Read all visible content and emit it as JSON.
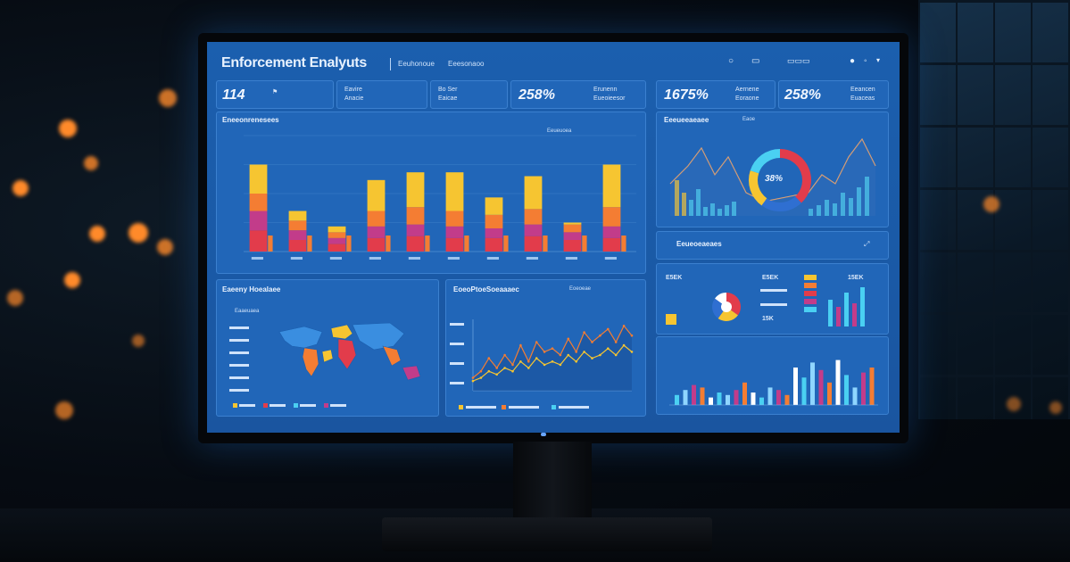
{
  "app": {
    "title": "Enforcement Enalyuts",
    "header_text_1": "Eeuhonoue",
    "header_text_2": "Eeesonaoo"
  },
  "kpis": [
    {
      "value": "114",
      "label_a": "",
      "label_b": ""
    },
    {
      "value": "",
      "label_a": "Eavire",
      "label_b": "Anacie"
    },
    {
      "value": "",
      "label_a": "Bo Ser",
      "label_b": "Eaicae"
    },
    {
      "value": "258%",
      "label_a": "Erunenn",
      "label_b": "Eueoieesor"
    },
    {
      "value": "1675%",
      "label_a": "Aernene",
      "label_b": "Eoraone"
    },
    {
      "value": "258%",
      "label_a": "Eeancen",
      "label_b": "Euaceas"
    }
  ],
  "panels": {
    "bar_main_title": "Eneeonrenesees",
    "bar_main_legend": "Eeueuoea",
    "map_title": "Eaeeny Hoealaee",
    "map_subtitle": "Eaaeuaea",
    "line_title": "EoeoPtoeSoeaaaec",
    "line_legend": "Eoeoeae",
    "combo_title": "Eeeueeaeaee",
    "combo_legend": "Eaoe",
    "breakdown_title": "Eeueoeaeaes",
    "donut_center": "38%",
    "mini_kpi_1": "E5EK",
    "mini_kpi_2": "15K",
    "mini_kpi_3": "15EK"
  },
  "colors": {
    "screen_bg": "#1b5fae",
    "panel_bg": "#2166b8",
    "yellow": "#f6c531",
    "orange": "#f47d33",
    "red": "#e23c4b",
    "magenta": "#c23c8a",
    "cyan": "#4ad0f2",
    "light_blue": "#8fd6ff"
  },
  "chart_data": [
    {
      "type": "bar",
      "stacked": true,
      "categories": [
        "",
        "",
        "",
        "",
        "",
        "",
        "",
        "",
        "",
        ""
      ],
      "series": [
        {
          "values": [
            22,
            12,
            8,
            14,
            16,
            14,
            14,
            16,
            12,
            14
          ]
        },
        {
          "values": [
            20,
            10,
            6,
            12,
            12,
            12,
            10,
            12,
            8,
            12
          ]
        },
        {
          "values": [
            18,
            10,
            6,
            16,
            18,
            16,
            14,
            16,
            8,
            20
          ]
        },
        {
          "values": [
            30,
            10,
            6,
            32,
            36,
            40,
            18,
            34,
            2,
            44
          ]
        }
      ]
    },
    {
      "type": "line",
      "x": [
        0,
        1,
        2,
        3,
        4,
        5,
        6,
        7,
        8,
        9,
        10,
        11,
        12,
        13,
        14,
        15,
        16,
        17,
        18,
        19,
        20
      ],
      "series": [
        {
          "values": [
            8,
            12,
            20,
            14,
            22,
            16,
            28,
            18,
            30,
            24,
            26,
            22,
            32,
            24,
            36,
            30,
            34,
            38,
            30,
            40,
            34
          ]
        },
        {
          "values": [
            6,
            8,
            12,
            10,
            14,
            12,
            18,
            14,
            20,
            16,
            18,
            16,
            22,
            18,
            24,
            20,
            22,
            26,
            22,
            28,
            24
          ]
        }
      ]
    },
    {
      "type": "pie",
      "values": [
        38,
        22,
        20,
        20
      ],
      "colors": [
        "#e23c4b",
        "#2f6fd1",
        "#f6c531",
        "#4ad0f2"
      ]
    },
    {
      "type": "pie",
      "values": [
        35,
        25,
        25,
        15
      ],
      "colors": [
        "#e23c4b",
        "#f6c531",
        "#2f6fd1",
        "#ffffff"
      ]
    },
    {
      "type": "bar",
      "categories": [
        "",
        "",
        "",
        "",
        "",
        "",
        "",
        "",
        "",
        "",
        "",
        "",
        "",
        "",
        "",
        "",
        "",
        "",
        "",
        "",
        "",
        "",
        "",
        ""
      ],
      "values": [
        8,
        12,
        16,
        14,
        6,
        10,
        8,
        12,
        18,
        10,
        6,
        14,
        12,
        8,
        30,
        22,
        34,
        28,
        18,
        36,
        24,
        14,
        26,
        30
      ]
    }
  ]
}
